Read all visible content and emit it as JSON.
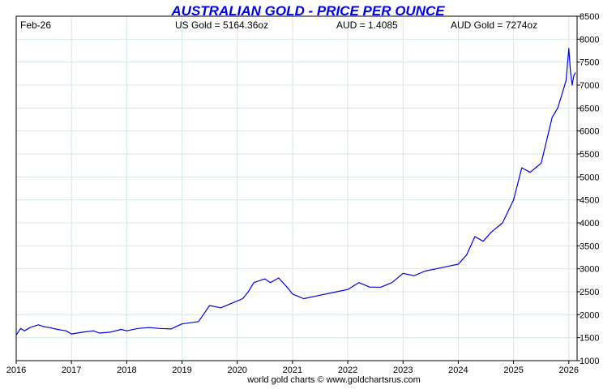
{
  "chart_data": {
    "type": "line",
    "title": "AUSTRALIAN GOLD - PRICE PER OUNCE",
    "header": {
      "date": "Feb-26",
      "us_gold": "US Gold = 5164.36oz",
      "aud_rate": "AUD = 1.4085",
      "aud_gold": "AUD Gold = 7274oz"
    },
    "footer": "world gold charts © www.goldchartsrus.com",
    "xlim": [
      2016,
      2026.15
    ],
    "ylim": [
      1000,
      8500
    ],
    "x_ticks": [
      2016,
      2017,
      2018,
      2019,
      2020,
      2021,
      2022,
      2023,
      2024,
      2025,
      2026
    ],
    "x_tick_labels": [
      "2016",
      "2017",
      "2018",
      "2019",
      "2020",
      "2021",
      "2022",
      "2023",
      "2024",
      "2025",
      "2026"
    ],
    "y_ticks": [
      1000,
      1500,
      2000,
      2500,
      3000,
      3500,
      4000,
      4500,
      5000,
      5500,
      6000,
      6500,
      7000,
      7500,
      8000,
      8500
    ],
    "y_tick_labels": [
      "1000",
      "1500",
      "2000",
      "2500",
      "3000",
      "3500",
      "4000",
      "4500",
      "5000",
      "5500",
      "6000",
      "6500",
      "7000",
      "7500",
      "8000",
      "8500"
    ],
    "grid": true,
    "colors": {
      "line": "#0000ee",
      "title": "#0000ee",
      "grid": "#d8e8e8",
      "axis": "#000000"
    },
    "series": [
      {
        "x": [
          2016.0,
          2016.08,
          2016.15,
          2016.25,
          2016.4,
          2016.5,
          2016.6,
          2016.75,
          2016.9,
          2017.0,
          2017.2,
          2017.4,
          2017.5,
          2017.7,
          2017.9,
          2018.0,
          2018.2,
          2018.4,
          2018.6,
          2018.8,
          2019.0,
          2019.3,
          2019.5,
          2019.7,
          2019.9,
          2020.1,
          2020.2,
          2020.3,
          2020.5,
          2020.6,
          2020.75,
          2020.9,
          2021.0,
          2021.2,
          2021.4,
          2021.6,
          2021.8,
          2022.0,
          2022.2,
          2022.4,
          2022.6,
          2022.8,
          2023.0,
          2023.2,
          2023.4,
          2023.6,
          2023.8,
          2024.0,
          2024.15,
          2024.3,
          2024.45,
          2024.6,
          2024.8,
          2025.0,
          2025.15,
          2025.3,
          2025.4,
          2025.5,
          2025.6,
          2025.7,
          2025.8,
          2025.9,
          2025.95,
          2026.0,
          2026.03,
          2026.06,
          2026.09,
          2026.12
        ],
        "y": [
          1560,
          1700,
          1650,
          1720,
          1780,
          1740,
          1720,
          1680,
          1650,
          1580,
          1620,
          1650,
          1600,
          1620,
          1680,
          1650,
          1700,
          1720,
          1700,
          1690,
          1800,
          1850,
          2200,
          2150,
          2250,
          2350,
          2500,
          2700,
          2780,
          2700,
          2800,
          2600,
          2450,
          2350,
          2400,
          2450,
          2500,
          2550,
          2700,
          2600,
          2600,
          2700,
          2900,
          2850,
          2950,
          3000,
          3050,
          3100,
          3300,
          3700,
          3600,
          3800,
          4000,
          4500,
          5200,
          5100,
          5200,
          5300,
          5800,
          6300,
          6500,
          6900,
          7100,
          7800,
          7300,
          7000,
          7200,
          7274
        ]
      }
    ]
  }
}
